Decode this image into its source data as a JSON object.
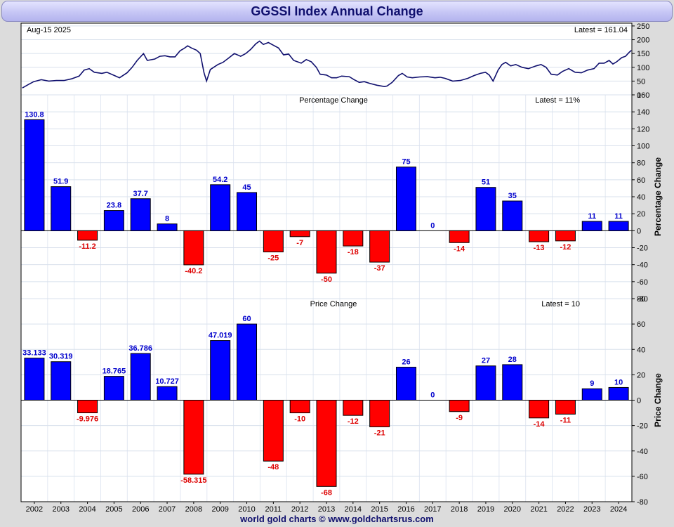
{
  "title": "GGSSI Index Annual Change",
  "footer": "world gold charts © www.goldchartsrus.com",
  "colors": {
    "positive": "#0000ff",
    "negative": "#ff0000",
    "line": "#10106e",
    "pos_label": "#0000cc",
    "neg_label": "#dd0000"
  },
  "chart_data": [
    {
      "type": "line",
      "id": "index",
      "date_label": "Aug-15  2025",
      "latest_label": "Latest = 161.04",
      "ylim": [
        0,
        260
      ],
      "yticks": [
        0,
        50,
        100,
        150,
        200,
        250
      ],
      "x_range": [
        2001.5,
        2025.7
      ],
      "points": [
        [
          2001.55,
          25
        ],
        [
          2001.8,
          38
        ],
        [
          2002.0,
          48
        ],
        [
          2002.3,
          55
        ],
        [
          2002.6,
          50
        ],
        [
          2002.9,
          52
        ],
        [
          2003.2,
          52
        ],
        [
          2003.5,
          58
        ],
        [
          2003.8,
          68
        ],
        [
          2004.0,
          90
        ],
        [
          2004.2,
          95
        ],
        [
          2004.4,
          82
        ],
        [
          2004.7,
          78
        ],
        [
          2004.9,
          82
        ],
        [
          2005.2,
          70
        ],
        [
          2005.4,
          62
        ],
        [
          2005.7,
          80
        ],
        [
          2005.9,
          100
        ],
        [
          2006.1,
          125
        ],
        [
          2006.35,
          150
        ],
        [
          2006.5,
          125
        ],
        [
          2006.8,
          130
        ],
        [
          2007.0,
          140
        ],
        [
          2007.2,
          142
        ],
        [
          2007.4,
          138
        ],
        [
          2007.6,
          138
        ],
        [
          2007.8,
          160
        ],
        [
          2007.95,
          168
        ],
        [
          2008.1,
          178
        ],
        [
          2008.25,
          170
        ],
        [
          2008.45,
          162
        ],
        [
          2008.6,
          150
        ],
        [
          2008.75,
          80
        ],
        [
          2008.85,
          50
        ],
        [
          2009.0,
          92
        ],
        [
          2009.3,
          110
        ],
        [
          2009.5,
          118
        ],
        [
          2009.7,
          132
        ],
        [
          2009.95,
          150
        ],
        [
          2010.2,
          140
        ],
        [
          2010.4,
          150
        ],
        [
          2010.6,
          165
        ],
        [
          2010.8,
          185
        ],
        [
          2010.95,
          195
        ],
        [
          2011.1,
          183
        ],
        [
          2011.3,
          190
        ],
        [
          2011.5,
          180
        ],
        [
          2011.7,
          170
        ],
        [
          2011.9,
          145
        ],
        [
          2012.1,
          148
        ],
        [
          2012.3,
          125
        ],
        [
          2012.6,
          115
        ],
        [
          2012.8,
          128
        ],
        [
          2013.0,
          120
        ],
        [
          2013.2,
          100
        ],
        [
          2013.35,
          75
        ],
        [
          2013.6,
          72
        ],
        [
          2013.8,
          62
        ],
        [
          2014.0,
          62
        ],
        [
          2014.2,
          68
        ],
        [
          2014.5,
          66
        ],
        [
          2014.7,
          55
        ],
        [
          2014.9,
          45
        ],
        [
          2015.1,
          48
        ],
        [
          2015.3,
          42
        ],
        [
          2015.6,
          35
        ],
        [
          2015.9,
          30
        ],
        [
          2016.0,
          32
        ],
        [
          2016.2,
          45
        ],
        [
          2016.45,
          70
        ],
        [
          2016.6,
          78
        ],
        [
          2016.8,
          65
        ],
        [
          2017.0,
          62
        ],
        [
          2017.3,
          65
        ],
        [
          2017.6,
          66
        ],
        [
          2017.9,
          62
        ],
        [
          2018.1,
          64
        ],
        [
          2018.3,
          60
        ],
        [
          2018.6,
          50
        ],
        [
          2018.9,
          52
        ],
        [
          2019.2,
          60
        ],
        [
          2019.45,
          70
        ],
        [
          2019.7,
          78
        ],
        [
          2019.9,
          82
        ],
        [
          2020.05,
          72
        ],
        [
          2020.2,
          50
        ],
        [
          2020.4,
          90
        ],
        [
          2020.55,
          110
        ],
        [
          2020.7,
          118
        ],
        [
          2020.9,
          105
        ],
        [
          2021.1,
          110
        ],
        [
          2021.35,
          100
        ],
        [
          2021.6,
          95
        ],
        [
          2021.9,
          105
        ],
        [
          2022.1,
          110
        ],
        [
          2022.3,
          100
        ],
        [
          2022.5,
          75
        ],
        [
          2022.75,
          72
        ],
        [
          2022.95,
          85
        ],
        [
          2023.2,
          95
        ],
        [
          2023.45,
          82
        ],
        [
          2023.7,
          80
        ],
        [
          2023.95,
          90
        ],
        [
          2024.2,
          95
        ],
        [
          2024.4,
          115
        ],
        [
          2024.6,
          115
        ],
        [
          2024.8,
          125
        ],
        [
          2024.95,
          112
        ],
        [
          2025.1,
          120
        ],
        [
          2025.3,
          135
        ],
        [
          2025.45,
          140
        ],
        [
          2025.6,
          155
        ],
        [
          2025.68,
          161
        ]
      ]
    },
    {
      "type": "bar",
      "id": "percentage",
      "title": "Percentage Change",
      "latest_label": "Latest = 11%",
      "ylabel": "Percentage Change",
      "ylim": [
        -80,
        160
      ],
      "yticks": [
        -80,
        -60,
        -40,
        -20,
        0,
        20,
        40,
        60,
        80,
        100,
        120,
        140,
        160
      ],
      "categories": [
        "2002",
        "2003",
        "2004",
        "2005",
        "2006",
        "2007",
        "2008",
        "2009",
        "2010",
        "2011",
        "2012",
        "2013",
        "2014",
        "2015",
        "2016",
        "2017",
        "2018",
        "2019",
        "2020",
        "2021",
        "2022",
        "2023",
        "2024"
      ],
      "values": [
        130.8,
        51.9,
        -11.2,
        23.8,
        37.7,
        8,
        -40.2,
        54.2,
        45,
        -25,
        -7,
        -50,
        -18,
        -37,
        75,
        0,
        -14,
        51,
        35,
        -13,
        -12,
        11,
        11
      ],
      "value_labels": [
        "130.8",
        "51.9",
        "-11.2",
        "23.8",
        "37.7",
        "8",
        "-40.2",
        "54.2",
        "45",
        "-25",
        "-7",
        "-50",
        "-18",
        "-37",
        "75",
        "0",
        "-14",
        "51",
        "35",
        "-13",
        "-12",
        "11",
        "11"
      ]
    },
    {
      "type": "bar",
      "id": "price",
      "title": "Price Change",
      "latest_label": "Latest = 10",
      "ylabel": "Price Change",
      "ylim": [
        -80,
        80
      ],
      "yticks": [
        -80,
        -60,
        -40,
        -20,
        0,
        20,
        40,
        60,
        80
      ],
      "categories": [
        "2002",
        "2003",
        "2004",
        "2005",
        "2006",
        "2007",
        "2008",
        "2009",
        "2010",
        "2011",
        "2012",
        "2013",
        "2014",
        "2015",
        "2016",
        "2017",
        "2018",
        "2019",
        "2020",
        "2021",
        "2022",
        "2023",
        "2024"
      ],
      "values": [
        33.133,
        30.319,
        -9.976,
        18.765,
        36.786,
        10.727,
        -58.315,
        47.019,
        60,
        -48,
        -10,
        -68,
        -12,
        -21,
        26,
        0,
        -9,
        27,
        28,
        -14,
        -11,
        9,
        10
      ],
      "value_labels": [
        "33.133",
        "30.319",
        "-9.976",
        "18.765",
        "36.786",
        "10.727",
        "-58.315",
        "47.019",
        "60",
        "-48",
        "-10",
        "-68",
        "-12",
        "-21",
        "26",
        "0",
        "-9",
        "27",
        "28",
        "-14",
        "-11",
        "9",
        "10"
      ]
    }
  ]
}
